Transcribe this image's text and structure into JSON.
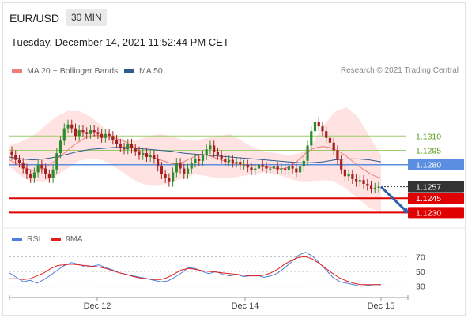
{
  "header": {
    "symbol": "EUR/USD",
    "timeframe": "30 MIN"
  },
  "datetime": "Tuesday, December 14, 2021 11:52:44 PM CET",
  "legend": {
    "items": [
      {
        "label": "MA 20 + Bollinger Bands",
        "color": "#f07c7c"
      },
      {
        "label": "MA 50",
        "color": "#2f5b8f"
      }
    ],
    "credit": "Research © 2021 Trading Central"
  },
  "rsi_legend": {
    "items": [
      {
        "label": "RSI",
        "color": "#4f7fdc"
      },
      {
        "label": "9MA",
        "color": "#e02020"
      }
    ]
  },
  "colors": {
    "up": "#2e8b2e",
    "down": "#a52020",
    "resistance": "#9acd6a",
    "pivot": "#5b8de0",
    "support": "#e00000",
    "band": "#ffd9d9",
    "arrow": "#2f5fa7"
  },
  "chart_data": [
    {
      "type": "candlestick",
      "title": "EUR/USD 30 MIN",
      "x_ticks": [
        "Dec 12",
        "Dec 14",
        "Dec 15"
      ],
      "ylim": [
        1.1218,
        1.1358
      ],
      "levels": [
        {
          "label": "1.1310",
          "value": 1.131,
          "kind": "resistance"
        },
        {
          "label": "1.1295",
          "value": 1.1295,
          "kind": "resistance"
        },
        {
          "label": "1.1280",
          "value": 1.128,
          "kind": "pivot"
        },
        {
          "label": "1.1257",
          "value": 1.1257,
          "kind": "last"
        },
        {
          "label": "1.1245",
          "value": 1.1245,
          "kind": "support"
        },
        {
          "label": "1.1230",
          "value": 1.123,
          "kind": "support"
        }
      ],
      "closes": [
        1.129,
        1.1285,
        1.1282,
        1.1276,
        1.127,
        1.1266,
        1.1272,
        1.128,
        1.1276,
        1.127,
        1.1266,
        1.1275,
        1.1292,
        1.1305,
        1.1318,
        1.1322,
        1.1318,
        1.131,
        1.1316,
        1.1314,
        1.1312,
        1.1316,
        1.1314,
        1.1312,
        1.1308,
        1.1312,
        1.131,
        1.1306,
        1.1302,
        1.1298,
        1.1296,
        1.1302,
        1.1297,
        1.1294,
        1.129,
        1.1292,
        1.1288,
        1.129,
        1.1286,
        1.1278,
        1.127,
        1.1266,
        1.1262,
        1.1272,
        1.1282,
        1.1276,
        1.127,
        1.1276,
        1.1282,
        1.1286,
        1.1284,
        1.129,
        1.1296,
        1.13,
        1.1293,
        1.129,
        1.1286,
        1.1283,
        1.1285,
        1.1282,
        1.1283,
        1.128,
        1.128,
        1.1277,
        1.1274,
        1.1276,
        1.128,
        1.1278,
        1.1276,
        1.1276,
        1.1278,
        1.1275,
        1.1276,
        1.1274,
        1.1278,
        1.1276,
        1.1272,
        1.1278,
        1.1284,
        1.13,
        1.1315,
        1.1325,
        1.132,
        1.1315,
        1.1308,
        1.1303,
        1.1295,
        1.1285,
        1.1275,
        1.1268,
        1.127,
        1.1265,
        1.1262,
        1.1264,
        1.126,
        1.1258,
        1.1255,
        1.1256,
        1.1257
      ],
      "ma20": [
        1.1285,
        1.1282,
        1.1279,
        1.1276,
        1.1274,
        1.1274,
        1.1276,
        1.128,
        1.1285,
        1.129,
        1.1295,
        1.13,
        1.1304,
        1.1308,
        1.131,
        1.1311,
        1.131,
        1.1309,
        1.1308,
        1.1306,
        1.1304,
        1.13,
        1.1296,
        1.1292,
        1.1289,
        1.1287,
        1.1285,
        1.1283,
        1.1281,
        1.1281,
        1.1283,
        1.1286,
        1.1289,
        1.1291,
        1.129,
        1.1288,
        1.1286,
        1.1284,
        1.1282,
        1.1281,
        1.128,
        1.1279,
        1.1279,
        1.1278,
        1.1278,
        1.1277,
        1.1276,
        1.1276,
        1.1277,
        1.1281,
        1.1286,
        1.1292,
        1.1296,
        1.1298,
        1.1299,
        1.1298,
        1.1296,
        1.1293,
        1.1289,
        1.1284,
        1.1279,
        1.1275,
        1.1271,
        1.1268,
        1.1266
      ],
      "ma50": [
        1.1288,
        1.1286,
        1.1285,
        1.1286,
        1.1288,
        1.1291,
        1.1294,
        1.1296,
        1.1297,
        1.1298,
        1.1298,
        1.1297,
        1.1296,
        1.1295,
        1.1294,
        1.1292,
        1.1291,
        1.129,
        1.1289,
        1.1288,
        1.1287,
        1.1286,
        1.1285,
        1.1284,
        1.1283,
        1.1282,
        1.1282,
        1.1283,
        1.1285,
        1.1286,
        1.1286,
        1.1285,
        1.1283
      ],
      "bands_upper": [
        1.13,
        1.1304,
        1.131,
        1.132,
        1.133,
        1.1336,
        1.1336,
        1.133,
        1.132,
        1.131,
        1.1306,
        1.1306,
        1.131,
        1.1312,
        1.131,
        1.1306,
        1.1305,
        1.1308,
        1.131,
        1.1312,
        1.1305,
        1.1298,
        1.1294,
        1.1292,
        1.129,
        1.1292,
        1.13,
        1.132,
        1.1335,
        1.134,
        1.133,
        1.131,
        1.129
      ],
      "bands_lower": [
        1.1278,
        1.1268,
        1.1262,
        1.1262,
        1.1268,
        1.1276,
        1.1284,
        1.1286,
        1.1285,
        1.1278,
        1.127,
        1.1262,
        1.1258,
        1.1258,
        1.1262,
        1.1266,
        1.127,
        1.1268,
        1.1266,
        1.1266,
        1.1268,
        1.127,
        1.1272,
        1.127,
        1.1266,
        1.1262,
        1.1262,
        1.1264,
        1.1262,
        1.1255,
        1.1245,
        1.1235,
        1.123
      ]
    },
    {
      "type": "line",
      "title": "RSI",
      "x_ticks": [
        "Dec 12",
        "Dec 14",
        "Dec 15"
      ],
      "ylim": [
        20,
        80
      ],
      "y_ticks": [
        "70",
        "50",
        "30"
      ],
      "series": [
        {
          "name": "RSI",
          "values": [
            48,
            42,
            36,
            38,
            34,
            39,
            45,
            52,
            58,
            62,
            60,
            56,
            57,
            59,
            55,
            52,
            48,
            46,
            44,
            42,
            40,
            38,
            36,
            37,
            42,
            48,
            55,
            54,
            50,
            47,
            50,
            46,
            44,
            46,
            43,
            44,
            45,
            42,
            44,
            48,
            55,
            63,
            72,
            76,
            71,
            62,
            52,
            42,
            36,
            34,
            32,
            30,
            31,
            32,
            32
          ]
        },
        {
          "name": "9MA",
          "values": [
            40,
            40,
            39,
            40,
            44,
            48,
            54,
            58,
            59,
            60,
            59,
            58,
            57,
            56,
            54,
            51,
            48,
            46,
            43,
            41,
            40,
            39,
            39,
            42,
            47,
            52,
            54,
            53,
            51,
            50,
            49,
            48,
            47,
            46,
            45,
            44,
            44,
            45,
            48,
            53,
            60,
            65,
            69,
            70,
            67,
            61,
            54,
            47,
            41,
            37,
            34,
            32,
            32,
            32,
            32
          ]
        }
      ]
    }
  ]
}
